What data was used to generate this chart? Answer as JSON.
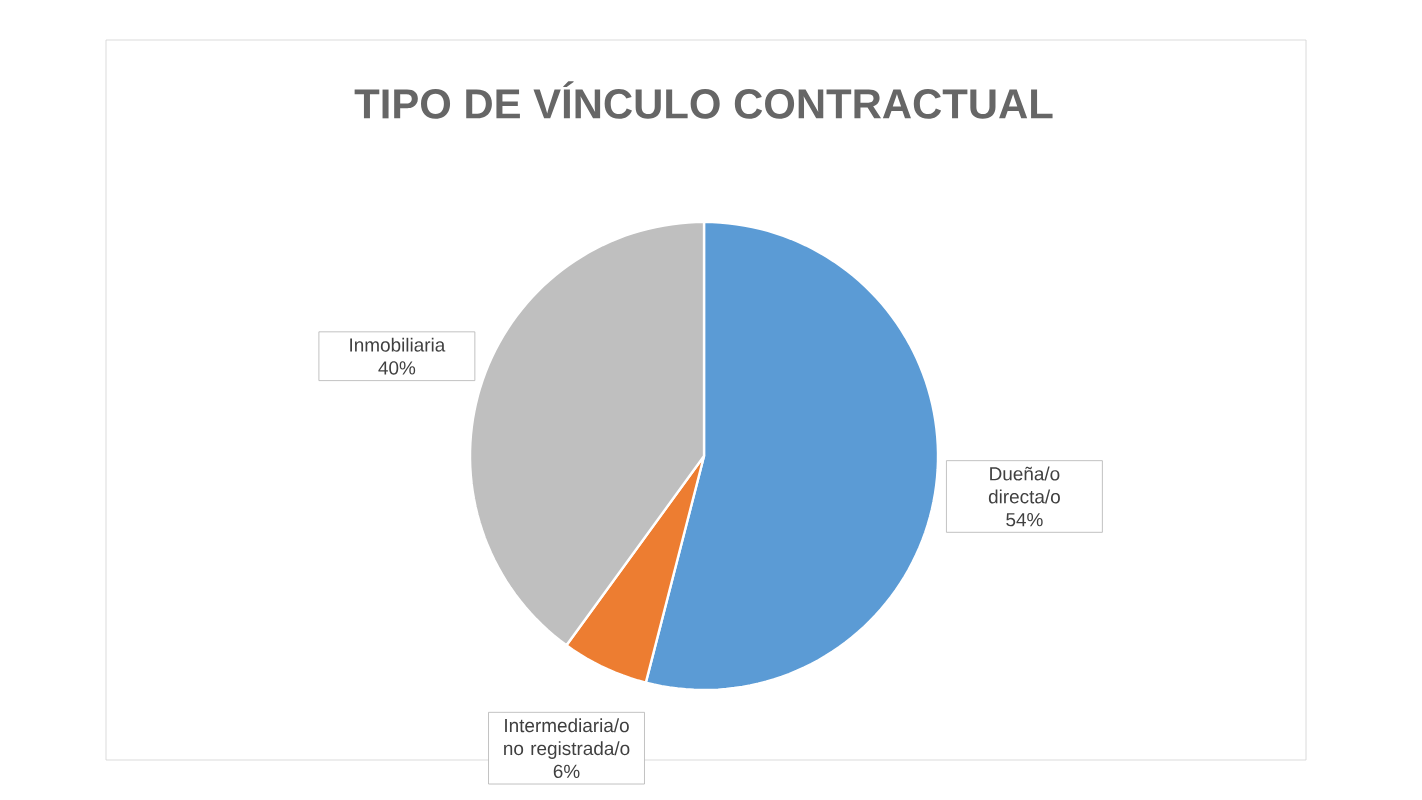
{
  "chart_data": {
    "type": "pie",
    "title": "TIPO DE VÍNCULO CONTRACTUAL",
    "categories": [
      "Dueña/o directa/o",
      "Intermediaria/o no registrada/o",
      "Inmobiliaria"
    ],
    "values": [
      54,
      6,
      40
    ],
    "colors": [
      "#5b9bd5",
      "#ed7d31",
      "#bfbfbf"
    ],
    "value_labels": [
      "54%",
      "6%",
      "40%"
    ]
  }
}
